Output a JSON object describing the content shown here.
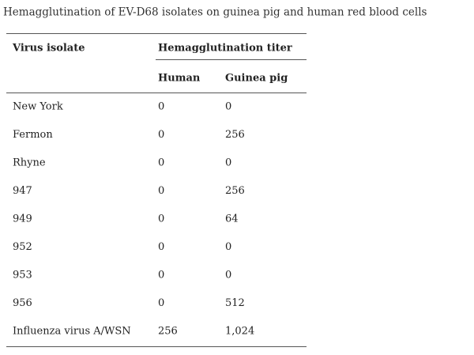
{
  "title": "Hemagglutination of EV-D68 isolates on guinea pig and human red blood cells",
  "table": {
    "column_header": "Virus isolate",
    "group_header": "Hemagglutination titer",
    "subheaders": [
      "Human",
      "Guinea pig"
    ],
    "rows": [
      [
        "New York",
        "0",
        "0"
      ],
      [
        "Fermon",
        "0",
        "256"
      ],
      [
        "Rhyne",
        "0",
        "0"
      ],
      [
        "947",
        "0",
        "256"
      ],
      [
        "949",
        "0",
        "64"
      ],
      [
        "952",
        "0",
        "0"
      ],
      [
        "953",
        "0",
        "0"
      ],
      [
        "956",
        "0",
        "512"
      ],
      [
        "Influenza virus A/WSN",
        "256",
        "1,024"
      ]
    ]
  }
}
